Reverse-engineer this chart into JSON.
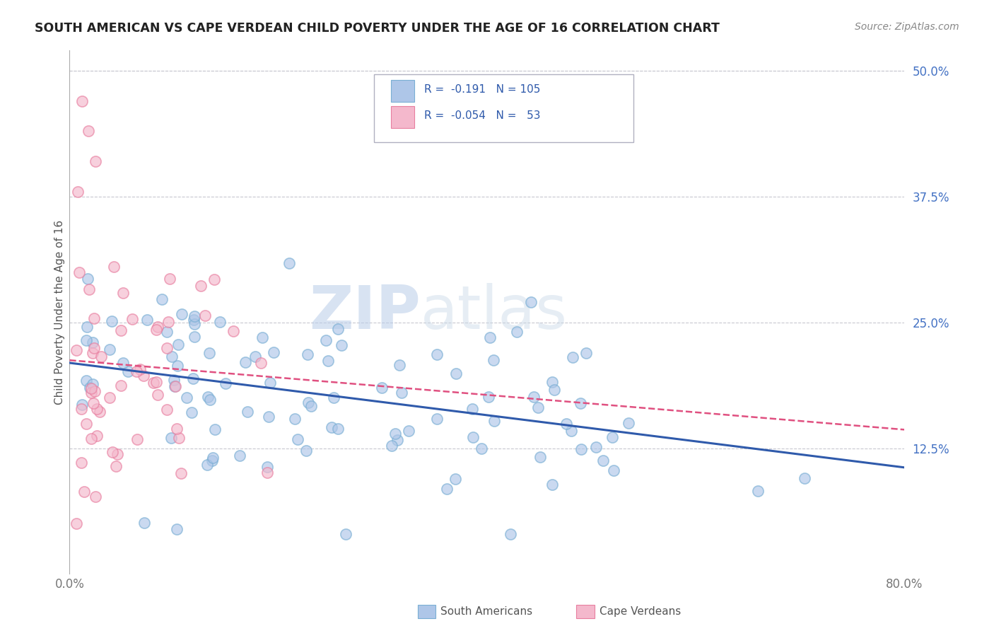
{
  "title": "SOUTH AMERICAN VS CAPE VERDEAN CHILD POVERTY UNDER THE AGE OF 16 CORRELATION CHART",
  "source": "Source: ZipAtlas.com",
  "ylabel": "Child Poverty Under the Age of 16",
  "ytick_labels": [
    "12.5%",
    "25.0%",
    "37.5%",
    "50.0%"
  ],
  "ytick_values": [
    0.125,
    0.25,
    0.375,
    0.5
  ],
  "xlim": [
    0.0,
    0.8
  ],
  "ylim": [
    0.0,
    0.52
  ],
  "sa_color": "#aec6e8",
  "cv_color": "#f4b8cc",
  "sa_edge_color": "#7aafd4",
  "cv_edge_color": "#e87fa0",
  "sa_line_color": "#2f5aab",
  "cv_line_color": "#e05080",
  "sa_R": -0.191,
  "sa_N": 105,
  "cv_R": -0.054,
  "cv_N": 53,
  "watermark": "ZIPatlas",
  "background_color": "#ffffff",
  "grid_color": "#c8c8d0",
  "sa_label": "South Americans",
  "cv_label": "Cape Verdeans",
  "tick_color": "#4472c4",
  "title_color": "#222222",
  "source_color": "#888888"
}
